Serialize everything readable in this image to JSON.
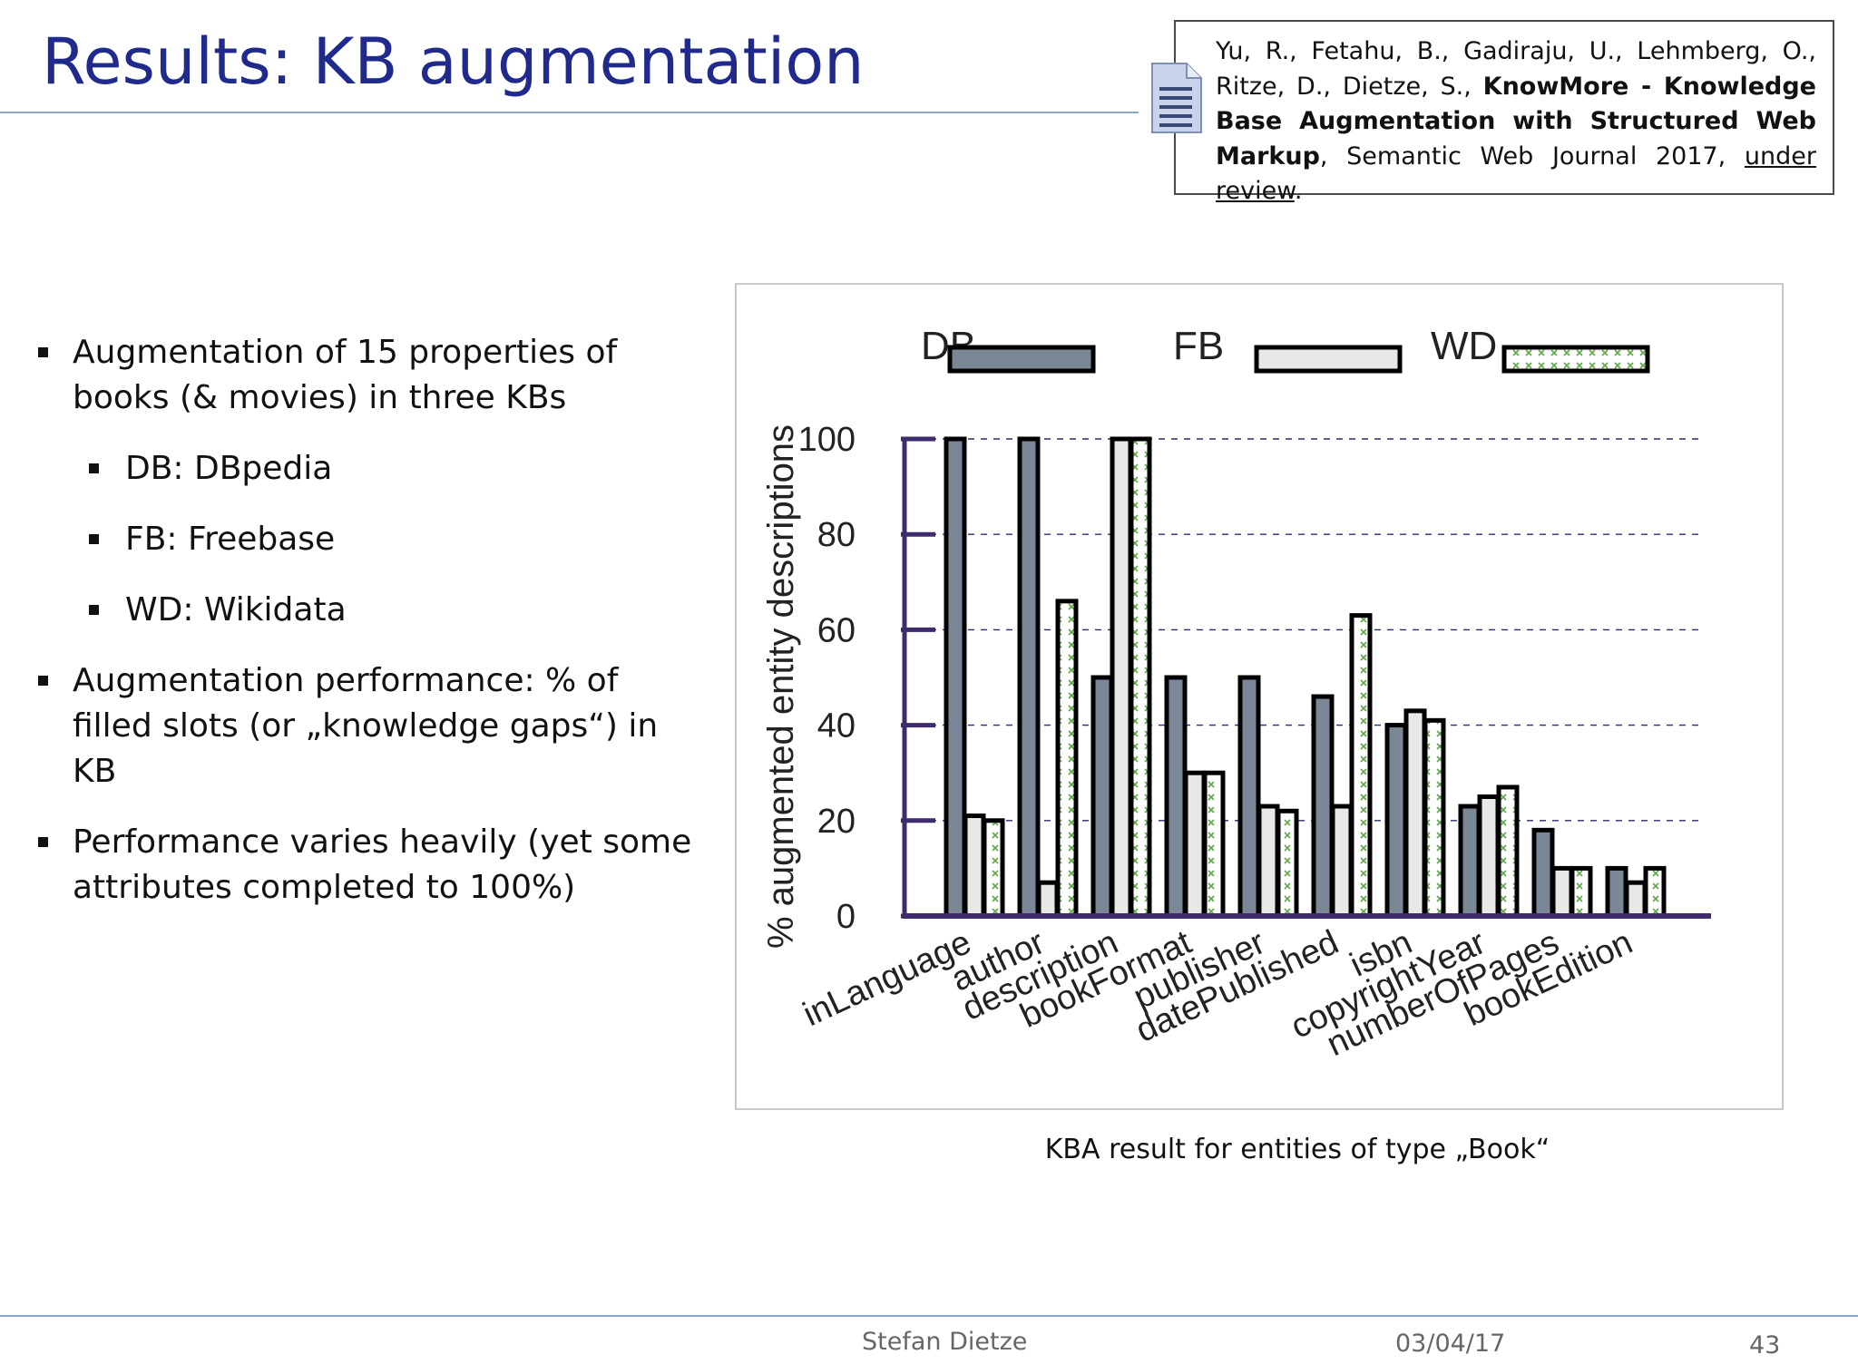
{
  "slide": {
    "title": "Results: KB augmentation"
  },
  "reference": {
    "authors": "Yu, R., Fetahu, B., Gadiraju, U., Lehmberg, O., Ritze, D., Dietze, S.,",
    "paper_title": "KnowMore - Knowledge Base Augmentation with Structured Web Markup",
    "venue": "Semantic Web Journal 2017,",
    "status": "under review",
    "end": "."
  },
  "bullets": [
    {
      "text": "Augmentation of 15 properties of books (& movies) in three KBs"
    },
    {
      "sub": [
        {
          "text": "DB: DBpedia"
        },
        {
          "text": "FB: Freebase"
        },
        {
          "text": "WD: Wikidata"
        }
      ]
    },
    {
      "text": "Augmentation performance: % of filled slots (or „knowledge gaps“) in KB"
    },
    {
      "text": "Performance varies heavily (yet some attributes completed to 100%)"
    }
  ],
  "caption": "KBA result for entities of type „Book“",
  "footer": {
    "author": "Stefan Dietze",
    "date": "03/04/17",
    "page": "43"
  },
  "colors": {
    "title": "#1f2a8c",
    "db": "#7a8797",
    "fb": "#e8e8e6",
    "wd_pattern": "#5fa84a",
    "axis": "#3f2a6e"
  },
  "chart_data": {
    "type": "bar",
    "title": "",
    "xlabel": "",
    "ylabel": "% augmented entity descriptions",
    "ylim": [
      0,
      100
    ],
    "yticks": [
      0,
      20,
      40,
      60,
      80,
      100
    ],
    "grid": "dashed horizontal",
    "legend": "top",
    "categories": [
      "inLanguage",
      "author",
      "description",
      "bookFormat",
      "publisher",
      "datePublished",
      "isbn",
      "copyrightYear",
      "numberOfPages",
      "bookEdition"
    ],
    "series": [
      {
        "name": "DB",
        "values": [
          100,
          100,
          50,
          50,
          50,
          46,
          40,
          23,
          18,
          10
        ]
      },
      {
        "name": "FB",
        "values": [
          21,
          7,
          100,
          30,
          23,
          23,
          43,
          25,
          10,
          7
        ]
      },
      {
        "name": "WD",
        "values": [
          20,
          66,
          100,
          30,
          22,
          63,
          41,
          27,
          10,
          10
        ]
      }
    ]
  }
}
